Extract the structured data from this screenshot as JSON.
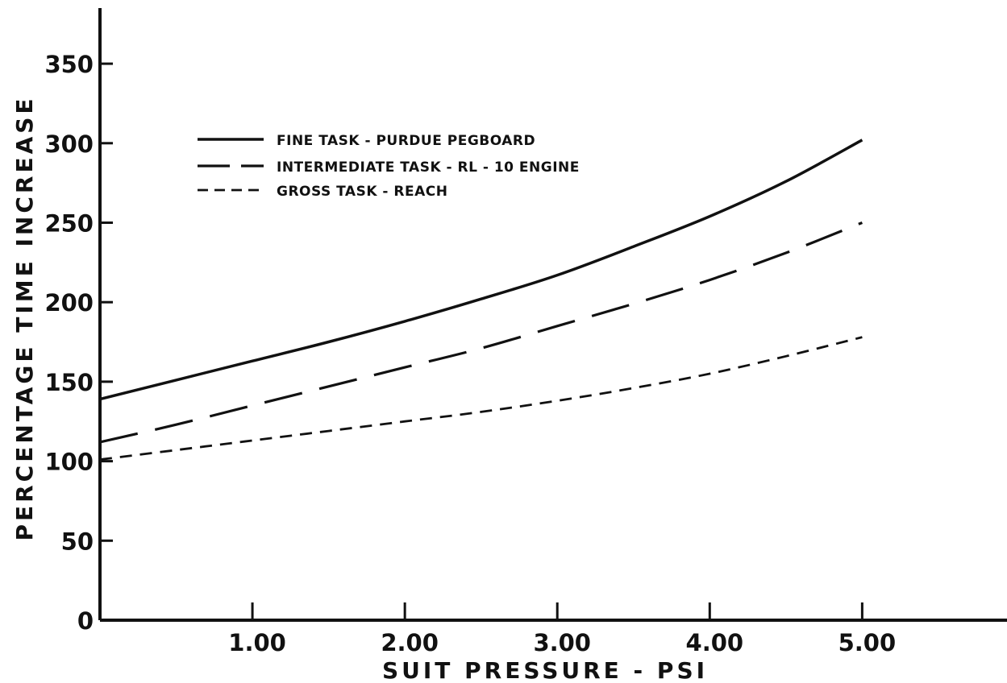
{
  "chart_data": {
    "type": "line",
    "xlabel": "SUIT PRESSURE - PSI",
    "ylabel": "PERCENTAGE TIME INCREASE",
    "xlim": [
      0,
      5.95
    ],
    "ylim": [
      0,
      385
    ],
    "xticks": [
      1,
      2,
      3,
      4,
      5
    ],
    "xtick_labels": [
      "1.00",
      "2.00",
      "3.00",
      "4.00",
      "5.00"
    ],
    "yticks": [
      0,
      50,
      100,
      150,
      200,
      250,
      300,
      350
    ],
    "ytick_labels": [
      "0",
      "50",
      "100",
      "150",
      "200",
      "250",
      "300",
      "350"
    ],
    "grid": false,
    "legend_position": "upper-left",
    "series": [
      {
        "name": "FINE TASK - PURDUE PEGBOARD",
        "style": "solid",
        "x": [
          0,
          0.5,
          1,
          1.5,
          2,
          2.5,
          3,
          3.5,
          4,
          4.5,
          5
        ],
        "y": [
          139,
          151,
          163,
          175,
          188,
          202,
          217,
          235,
          254,
          276,
          302
        ]
      },
      {
        "name": "INTERMEDIATE TASK - RL - 10 ENGINE",
        "style": "long-dash",
        "x": [
          0,
          0.5,
          1,
          1.5,
          2,
          2.5,
          3,
          3.5,
          4,
          4.5,
          5
        ],
        "y": [
          112,
          123,
          135,
          147,
          159,
          171,
          185,
          199,
          214,
          231,
          250
        ]
      },
      {
        "name": "GROSS TASK - REACH",
        "style": "short-dash",
        "x": [
          0,
          0.5,
          1,
          1.5,
          2,
          2.5,
          3,
          3.5,
          4,
          4.5,
          5
        ],
        "y": [
          101,
          107,
          113,
          119,
          125,
          131,
          138,
          146,
          155,
          166,
          178
        ]
      }
    ]
  }
}
